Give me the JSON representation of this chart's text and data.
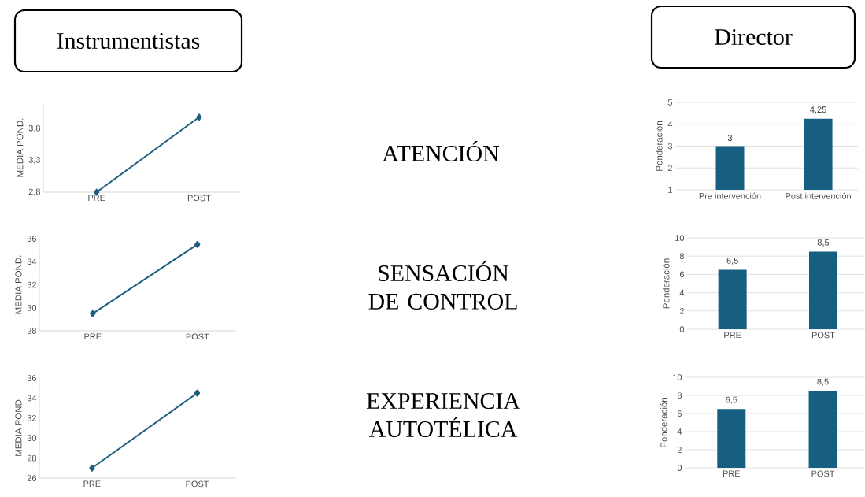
{
  "chart_data": [
    {
      "type": "other",
      "annotations": [
        "Instrumentistas",
        "Director",
        "ATENCIÓN",
        "SENSACIÓN DE CONTROL",
        "EXPERIENCIA AUTOTÉLICA"
      ]
    },
    {
      "type": "line",
      "ylabel": "MEDIA POND.",
      "categories": [
        "PRE",
        "POST"
      ],
      "values": [
        2.8,
        3.98
      ],
      "color": "#1d5e7e",
      "marker": "diamond",
      "ylim": [
        2.8,
        4.2
      ],
      "yticks": [
        {
          "value": 2.8,
          "label": "2,8"
        },
        {
          "value": 3.3,
          "label": "3,3"
        },
        {
          "value": 3.8,
          "label": "3,8"
        }
      ]
    },
    {
      "type": "bar",
      "ylabel": "Ponderación",
      "categories": [
        "Pre intervención",
        "Post intervención"
      ],
      "values": [
        3,
        4.25
      ],
      "value_labels": [
        "3",
        "4,25"
      ],
      "color": "#165f80",
      "ylim": [
        1,
        5
      ],
      "yticks": [
        1,
        2,
        3,
        4,
        5
      ],
      "grid": "y"
    },
    {
      "type": "line",
      "ylabel": "MEDIA POND.",
      "categories": [
        "PRE",
        "POST"
      ],
      "values": [
        29.5,
        35.5
      ],
      "color": "#1d5e7e",
      "marker": "diamond",
      "ylim": [
        28,
        36
      ],
      "yticks": [
        28,
        30,
        32,
        34,
        36
      ]
    },
    {
      "type": "bar",
      "ylabel": "Ponderación",
      "categories": [
        "PRE",
        "POST"
      ],
      "values": [
        6.5,
        8.5
      ],
      "value_labels": [
        "6,5",
        "8,5"
      ],
      "color": "#165f80",
      "ylim": [
        0,
        10
      ],
      "yticks": [
        0,
        2,
        4,
        6,
        8,
        10
      ],
      "grid": "y"
    },
    {
      "type": "line",
      "ylabel": "MEDIA POND",
      "categories": [
        "PRE",
        "POST"
      ],
      "values": [
        27,
        34.5
      ],
      "color": "#1d5e7e",
      "marker": "diamond",
      "ylim": [
        26,
        36
      ],
      "yticks": [
        26,
        28,
        30,
        32,
        34,
        36
      ]
    },
    {
      "type": "bar",
      "ylabel": "Ponderación",
      "categories": [
        "PRE",
        "POST"
      ],
      "values": [
        6.5,
        8.5
      ],
      "value_labels": [
        "6,5",
        "8,5"
      ],
      "color": "#165f80",
      "ylim": [
        0,
        10
      ],
      "yticks": [
        0,
        2,
        4,
        6,
        8,
        10
      ],
      "grid": "y"
    }
  ]
}
